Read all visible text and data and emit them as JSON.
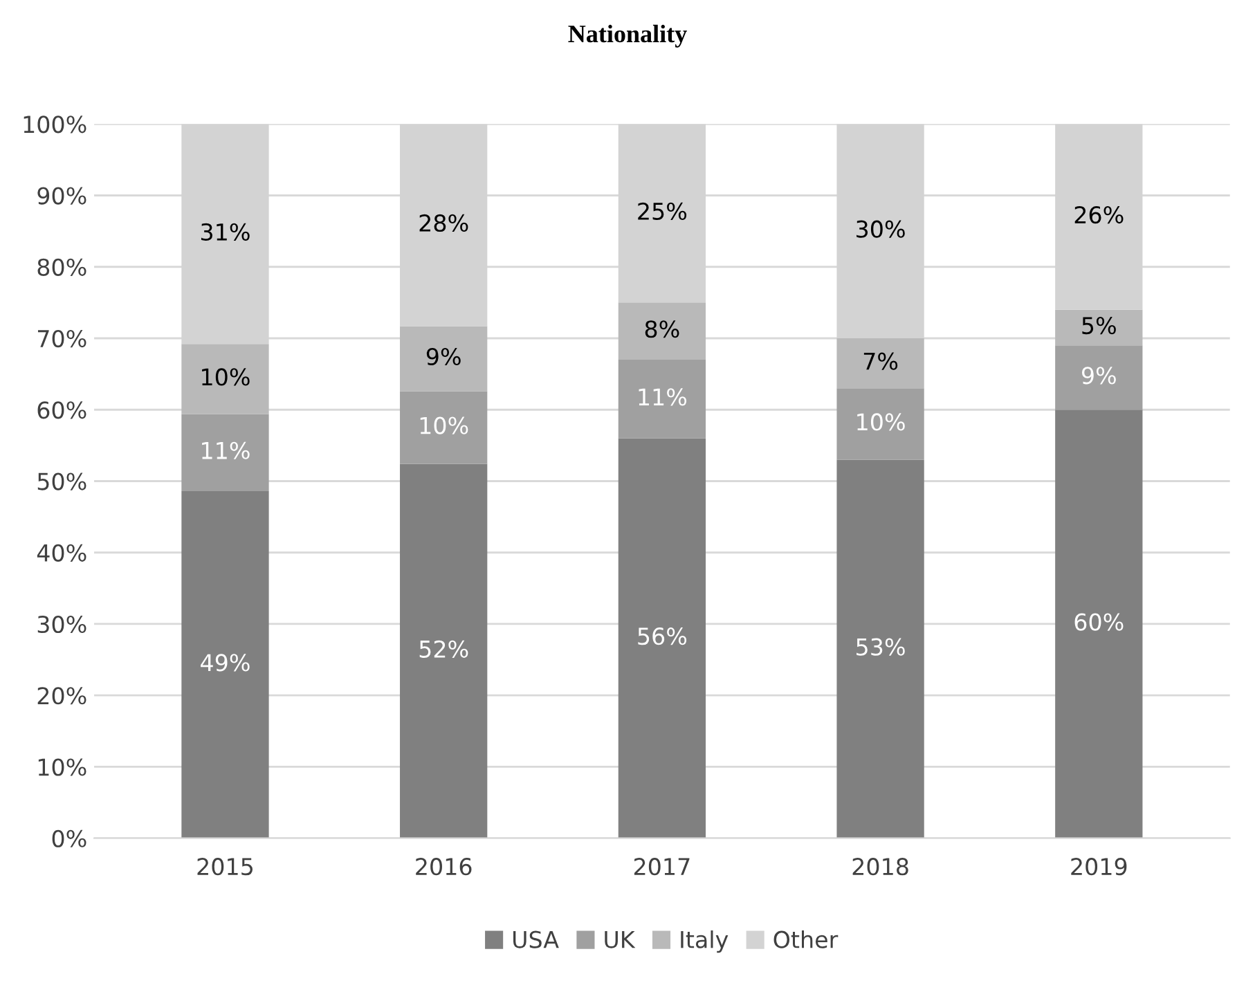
{
  "chart_data": {
    "type": "bar",
    "title": "Nationality",
    "stacked": true,
    "categories": [
      "2015",
      "2016",
      "2017",
      "2018",
      "2019"
    ],
    "series": [
      {
        "name": "USA",
        "color": "#808080",
        "values": [
          48.6,
          52.4,
          56,
          53,
          60
        ],
        "value_labels": [
          "49%",
          "52%",
          "56%",
          "53%",
          "60%"
        ]
      },
      {
        "name": "UK",
        "color": "#a0a0a0",
        "values": [
          10.8,
          10.2,
          11,
          10,
          9
        ],
        "value_labels": [
          "11%",
          "10%",
          "11%",
          "10%",
          "9%"
        ]
      },
      {
        "name": "Italy",
        "color": "#b9b9b9",
        "values": [
          9.8,
          9.1,
          8,
          7,
          5
        ],
        "value_labels": [
          "10%",
          "9%",
          "8%",
          "7%",
          "5%"
        ]
      },
      {
        "name": "Other",
        "color": "#d3d3d3",
        "values": [
          30.8,
          28.3,
          25,
          30,
          26
        ],
        "value_labels": [
          "31%",
          "28%",
          "25%",
          "30%",
          "26%"
        ]
      }
    ],
    "ylim": [
      0,
      100
    ],
    "yticks": [
      {
        "value": 0,
        "label": "0%"
      },
      {
        "value": 10,
        "label": "10%"
      },
      {
        "value": 20,
        "label": "20%"
      },
      {
        "value": 30,
        "label": "30%"
      },
      {
        "value": 40,
        "label": "40%"
      },
      {
        "value": 50,
        "label": "50%"
      },
      {
        "value": 60,
        "label": "60%"
      },
      {
        "value": 70,
        "label": "70%"
      },
      {
        "value": 80,
        "label": "80%"
      },
      {
        "value": 90,
        "label": "90%"
      },
      {
        "value": 100,
        "label": "100%"
      }
    ],
    "grid": "y",
    "legend": "bottom"
  }
}
